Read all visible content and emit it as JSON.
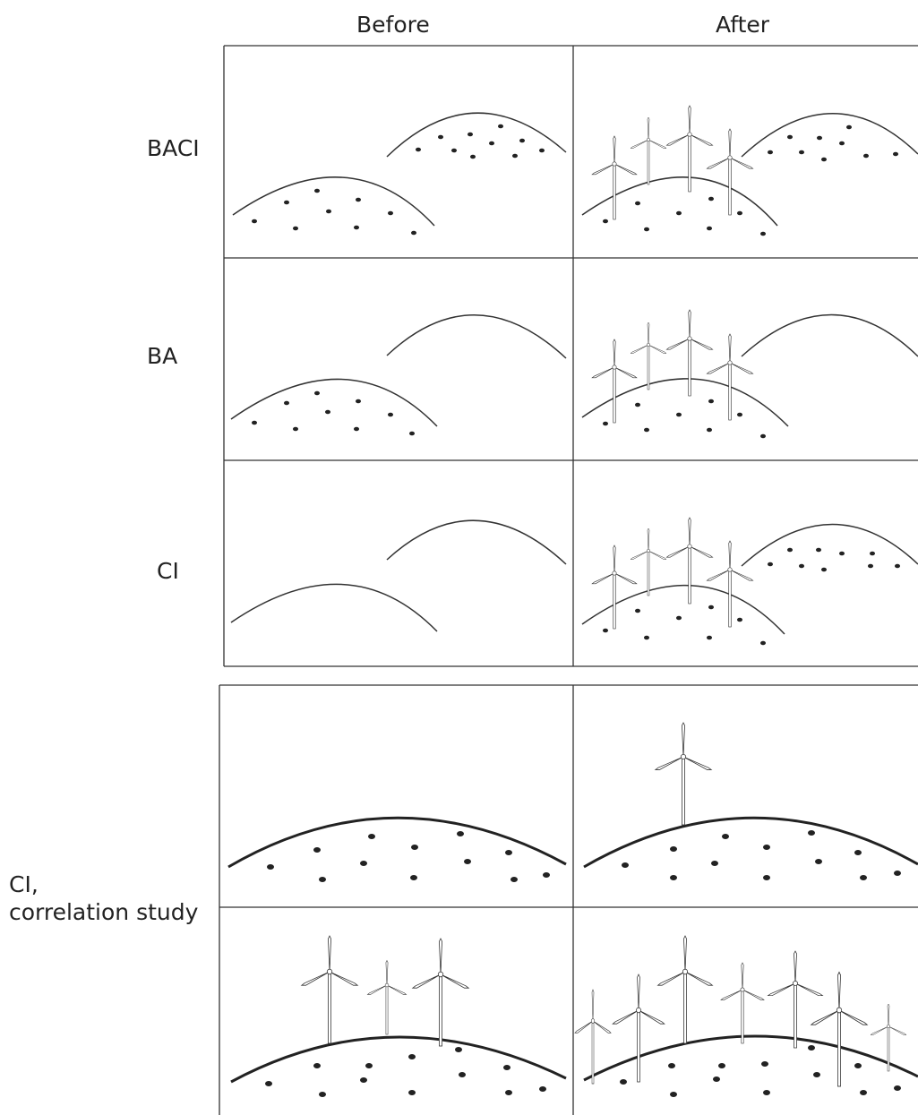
{
  "columns": {
    "before": "Before",
    "after": "After"
  },
  "rows": {
    "baci": "BACI",
    "ba": "BA",
    "ci": "CI",
    "ci_correlation_line1": "CI,",
    "ci_correlation_line2": "correlation study"
  },
  "colors": {
    "line": "#333333",
    "ink": "#222222",
    "background": "#ffffff"
  },
  "icons": [
    "wind-turbine-icon",
    "hill-outline",
    "organism-dot"
  ]
}
